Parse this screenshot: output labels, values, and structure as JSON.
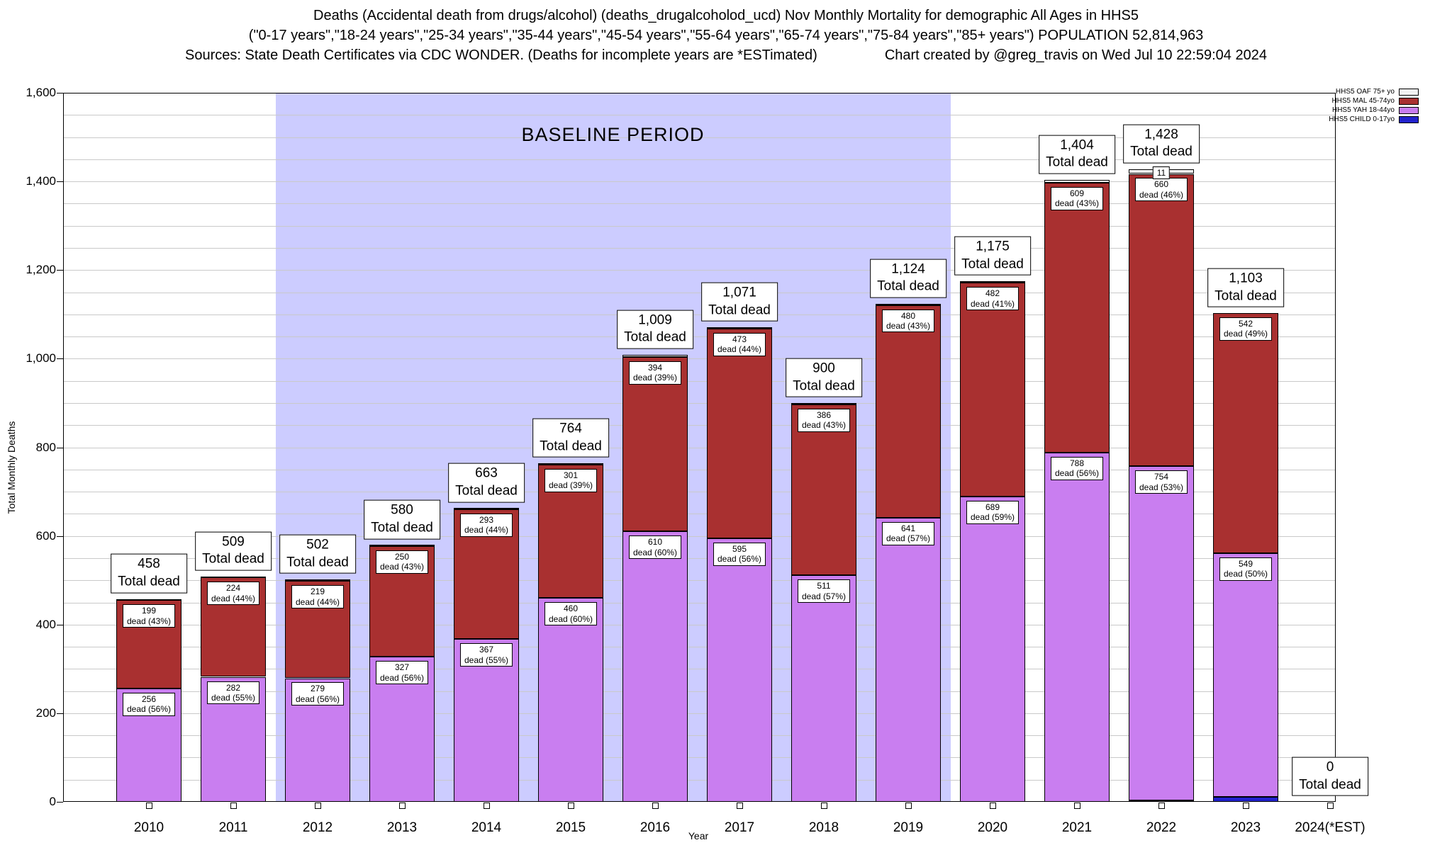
{
  "header": {
    "title_line1": "Deaths (Accidental death from drugs/alcohol) (deaths_drugalcoholod_ucd) Nov Monthly Mortality for demographic All Ages in HHS5",
    "title_line2": "(\"0-17 years\",\"18-24 years\",\"25-34 years\",\"35-44 years\",\"45-54 years\",\"55-64 years\",\"65-74 years\",\"75-84 years\",\"85+ years\") POPULATION 52,814,963",
    "sources_left": "Sources: State Death Certificates via CDC WONDER. (Deaths for incomplete years are *ESTimated)",
    "created_right": "Chart created by @greg_travis on Wed Jul 10 22:59:04 2024"
  },
  "chart_data": {
    "type": "bar",
    "stacked": true,
    "xlabel": "Year",
    "ylabel": "Total Monthly Deaths",
    "ylim": [
      0,
      1600
    ],
    "ytick_step": 200,
    "ytick_labels": [
      "0",
      "200",
      "400",
      "600",
      "800",
      "1,000",
      "1,200",
      "1,400",
      "1,600"
    ],
    "grid": true,
    "legend_position": "top-right",
    "total_dead_suffix": "Total dead",
    "baseline_band": {
      "label": "BASELINE PERIOD",
      "start_year": "2012",
      "end_year": "2019",
      "color": "#ccccff"
    },
    "grid_color": "#c9c9c9",
    "categories": [
      "2010",
      "2011",
      "2012",
      "2013",
      "2014",
      "2015",
      "2016",
      "2017",
      "2018",
      "2019",
      "2020",
      "2021",
      "2022",
      "2023",
      "2024(*EST)"
    ],
    "series_meta": [
      {
        "key": "oaf",
        "name": "HHS5 OAF 75+ yo",
        "color": "#f2f2f2"
      },
      {
        "key": "mal",
        "name": "HHS5 MAL 45-74yo",
        "color": "#a93030"
      },
      {
        "key": "yah",
        "name": "HHS5 YAH 18-44yo",
        "color": "#c97ef0"
      },
      {
        "key": "child",
        "name": "HHS5 CHILD 0-17yo",
        "color": "#2222cc"
      }
    ],
    "bars": [
      {
        "year": "2010",
        "total": 458,
        "total_text": "458",
        "segments": {
          "child": 0,
          "yah": 256,
          "mal": 199,
          "oaf": 3
        },
        "labels": {
          "yah": [
            "256",
            "dead (56%)"
          ],
          "mal": [
            "199",
            "dead (43%)"
          ]
        }
      },
      {
        "year": "2011",
        "total": 509,
        "total_text": "509",
        "segments": {
          "child": 0,
          "yah": 282,
          "mal": 224,
          "oaf": 3
        },
        "labels": {
          "yah": [
            "282",
            "dead (55%)"
          ],
          "mal": [
            "224",
            "dead (44%)"
          ]
        }
      },
      {
        "year": "2012",
        "total": 502,
        "total_text": "502",
        "segments": {
          "child": 0,
          "yah": 279,
          "mal": 219,
          "oaf": 4
        },
        "labels": {
          "yah": [
            "279",
            "dead (56%)"
          ],
          "mal": [
            "219",
            "dead (44%)"
          ]
        }
      },
      {
        "year": "2013",
        "total": 580,
        "total_text": "580",
        "segments": {
          "child": 0,
          "yah": 327,
          "mal": 250,
          "oaf": 3
        },
        "labels": {
          "yah": [
            "327",
            "dead (56%)"
          ],
          "mal": [
            "250",
            "dead (43%)"
          ]
        }
      },
      {
        "year": "2014",
        "total": 663,
        "total_text": "663",
        "segments": {
          "child": 0,
          "yah": 367,
          "mal": 293,
          "oaf": 3
        },
        "labels": {
          "yah": [
            "367",
            "dead (55%)"
          ],
          "mal": [
            "293",
            "dead (44%)"
          ]
        }
      },
      {
        "year": "2015",
        "total": 764,
        "total_text": "764",
        "segments": {
          "child": 0,
          "yah": 460,
          "mal": 301,
          "oaf": 3
        },
        "labels": {
          "yah": [
            "460",
            "dead (60%)"
          ],
          "mal": [
            "301",
            "dead (39%)"
          ]
        }
      },
      {
        "year": "2016",
        "total": 1009,
        "total_text": "1,009",
        "segments": {
          "child": 0,
          "yah": 610,
          "mal": 394,
          "oaf": 5
        },
        "labels": {
          "yah": [
            "610",
            "dead (60%)"
          ],
          "mal": [
            "394",
            "dead (39%)"
          ]
        }
      },
      {
        "year": "2017",
        "total": 1071,
        "total_text": "1,071",
        "segments": {
          "child": 0,
          "yah": 595,
          "mal": 473,
          "oaf": 3
        },
        "labels": {
          "yah": [
            "595",
            "dead (56%)"
          ],
          "mal": [
            "473",
            "dead (44%)"
          ]
        }
      },
      {
        "year": "2018",
        "total": 900,
        "total_text": "900",
        "segments": {
          "child": 0,
          "yah": 511,
          "mal": 386,
          "oaf": 3
        },
        "labels": {
          "yah": [
            "511",
            "dead (57%)"
          ],
          "mal": [
            "386",
            "dead (43%)"
          ]
        }
      },
      {
        "year": "2019",
        "total": 1124,
        "total_text": "1,124",
        "segments": {
          "child": 0,
          "yah": 641,
          "mal": 480,
          "oaf": 3
        },
        "labels": {
          "yah": [
            "641",
            "dead (57%)"
          ],
          "mal": [
            "480",
            "dead (43%)"
          ]
        }
      },
      {
        "year": "2020",
        "total": 1175,
        "total_text": "1,175",
        "segments": {
          "child": 0,
          "yah": 689,
          "mal": 482,
          "oaf": 4
        },
        "labels": {
          "yah": [
            "689",
            "dead (59%)"
          ],
          "mal": [
            "482",
            "dead (41%)"
          ]
        }
      },
      {
        "year": "2021",
        "total": 1404,
        "total_text": "1,404",
        "segments": {
          "child": 0,
          "yah": 788,
          "mal": 609,
          "oaf": 7
        },
        "labels": {
          "yah": [
            "788",
            "dead (56%)"
          ],
          "mal": [
            "609",
            "dead (43%)"
          ]
        }
      },
      {
        "year": "2022",
        "total": 1428,
        "total_text": "1,428",
        "segments": {
          "child": 3,
          "yah": 754,
          "mal": 660,
          "oaf": 11
        },
        "labels": {
          "yah": [
            "754",
            "dead (53%)"
          ],
          "mal": [
            "660",
            "dead (46%)"
          ],
          "oaf": [
            "11"
          ]
        }
      },
      {
        "year": "2023",
        "total": 1103,
        "total_text": "1,103",
        "segments": {
          "child": 12,
          "yah": 549,
          "mal": 542,
          "oaf": 0
        },
        "labels": {
          "yah": [
            "549",
            "dead (50%)"
          ],
          "mal": [
            "542",
            "dead (49%)"
          ]
        }
      },
      {
        "year": "2024(*EST)",
        "total": 0,
        "total_text": "0",
        "segments": {
          "child": 0,
          "yah": 0,
          "mal": 0,
          "oaf": 0
        },
        "labels": {}
      }
    ]
  }
}
